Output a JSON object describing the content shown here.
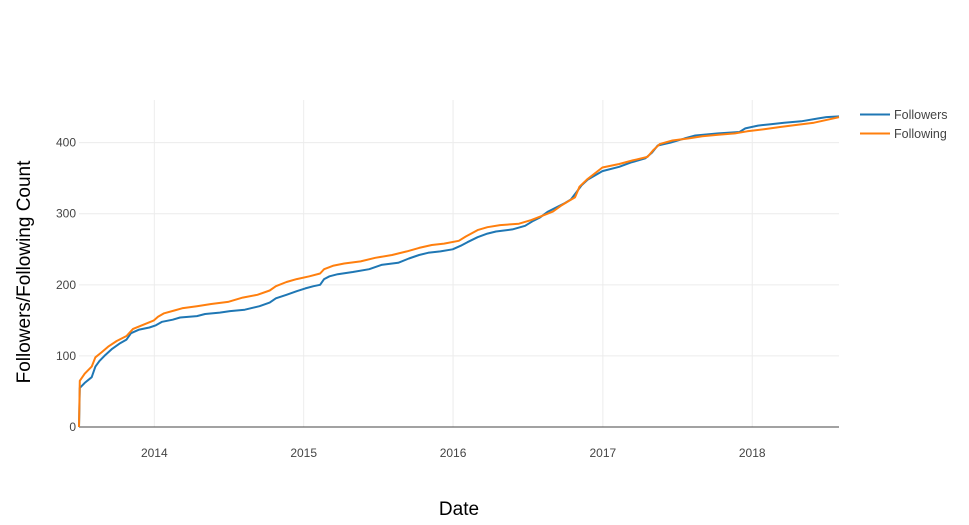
{
  "chart_data": {
    "type": "line",
    "title": "",
    "xlabel": "Date",
    "ylabel": "Followers/Following Count",
    "x_ticks": [
      "2014",
      "2015",
      "2016",
      "2017",
      "2018"
    ],
    "y_ticks": [
      "0",
      "100",
      "200",
      "300",
      "400"
    ],
    "xlim": [
      "2013-07-01",
      "2018-08-01"
    ],
    "ylim": [
      0,
      460
    ],
    "grid": true,
    "legend_position": "top-right",
    "series": [
      {
        "name": "Followers",
        "color": "#1f77b4",
        "points": [
          [
            "2013-07-01",
            0
          ],
          [
            "2013-07-03",
            55
          ],
          [
            "2013-07-15",
            62
          ],
          [
            "2013-08-01",
            70
          ],
          [
            "2013-08-10",
            85
          ],
          [
            "2013-08-20",
            93
          ],
          [
            "2013-09-01",
            100
          ],
          [
            "2013-09-20",
            110
          ],
          [
            "2013-10-10",
            118
          ],
          [
            "2013-10-25",
            123
          ],
          [
            "2013-11-05",
            132
          ],
          [
            "2013-11-25",
            137
          ],
          [
            "2013-12-20",
            140
          ],
          [
            "2014-01-05",
            143
          ],
          [
            "2014-01-20",
            148
          ],
          [
            "2014-02-15",
            151
          ],
          [
            "2014-03-05",
            154
          ],
          [
            "2014-04-15",
            156
          ],
          [
            "2014-05-05",
            159
          ],
          [
            "2014-06-10",
            161
          ],
          [
            "2014-07-05",
            163
          ],
          [
            "2014-08-10",
            165
          ],
          [
            "2014-09-15",
            170
          ],
          [
            "2014-10-10",
            175
          ],
          [
            "2014-10-25",
            181
          ],
          [
            "2014-11-20",
            186
          ],
          [
            "2014-12-15",
            191
          ],
          [
            "2015-01-05",
            195
          ],
          [
            "2015-01-25",
            198
          ],
          [
            "2015-02-10",
            200
          ],
          [
            "2015-02-20",
            208
          ],
          [
            "2015-03-05",
            212
          ],
          [
            "2015-03-25",
            215
          ],
          [
            "2015-05-01",
            218
          ],
          [
            "2015-06-10",
            222
          ],
          [
            "2015-07-10",
            228
          ],
          [
            "2015-08-20",
            231
          ],
          [
            "2015-09-15",
            237
          ],
          [
            "2015-10-10",
            242
          ],
          [
            "2015-11-01",
            245
          ],
          [
            "2015-12-01",
            247
          ],
          [
            "2015-12-31",
            250
          ],
          [
            "2016-01-20",
            255
          ],
          [
            "2016-02-05",
            260
          ],
          [
            "2016-03-01",
            267
          ],
          [
            "2016-03-25",
            272
          ],
          [
            "2016-04-15",
            275
          ],
          [
            "2016-05-25",
            278
          ],
          [
            "2016-06-25",
            283
          ],
          [
            "2016-07-15",
            290
          ],
          [
            "2016-08-01",
            295
          ],
          [
            "2016-08-20",
            303
          ],
          [
            "2016-09-10",
            309
          ],
          [
            "2016-09-30",
            315
          ],
          [
            "2016-10-15",
            320
          ],
          [
            "2016-10-28",
            330
          ],
          [
            "2016-11-10",
            340
          ],
          [
            "2016-11-25",
            348
          ],
          [
            "2016-12-31",
            360
          ],
          [
            "2017-02-10",
            366
          ],
          [
            "2017-03-10",
            372
          ],
          [
            "2017-04-15",
            378
          ],
          [
            "2017-05-01",
            386
          ],
          [
            "2017-05-15",
            396
          ],
          [
            "2017-06-15",
            400
          ],
          [
            "2017-07-20",
            406
          ],
          [
            "2017-08-15",
            410
          ],
          [
            "2017-10-10",
            413
          ],
          [
            "2017-12-01",
            415
          ],
          [
            "2017-12-15",
            420
          ],
          [
            "2018-01-15",
            424
          ],
          [
            "2018-02-15",
            426
          ],
          [
            "2018-03-20",
            428
          ],
          [
            "2018-05-01",
            430
          ],
          [
            "2018-06-10",
            434
          ],
          [
            "2018-07-01",
            436
          ],
          [
            "2018-08-01",
            437
          ]
        ]
      },
      {
        "name": "Following",
        "color": "#ff7f0e",
        "points": [
          [
            "2013-07-01",
            0
          ],
          [
            "2013-07-03",
            65
          ],
          [
            "2013-07-15",
            75
          ],
          [
            "2013-08-01",
            85
          ],
          [
            "2013-08-10",
            98
          ],
          [
            "2013-08-25",
            105
          ],
          [
            "2013-09-10",
            113
          ],
          [
            "2013-10-01",
            121
          ],
          [
            "2013-10-25",
            128
          ],
          [
            "2013-11-10",
            138
          ],
          [
            "2013-12-10",
            145
          ],
          [
            "2013-12-31",
            150
          ],
          [
            "2014-01-10",
            155
          ],
          [
            "2014-01-25",
            160
          ],
          [
            "2014-02-20",
            164
          ],
          [
            "2014-03-10",
            167
          ],
          [
            "2014-04-15",
            170
          ],
          [
            "2014-05-20",
            173
          ],
          [
            "2014-06-30",
            176
          ],
          [
            "2014-08-05",
            182
          ],
          [
            "2014-09-10",
            186
          ],
          [
            "2014-10-10",
            192
          ],
          [
            "2014-10-25",
            198
          ],
          [
            "2014-11-20",
            204
          ],
          [
            "2014-12-15",
            208
          ],
          [
            "2015-01-15",
            212
          ],
          [
            "2015-02-10",
            216
          ],
          [
            "2015-02-20",
            222
          ],
          [
            "2015-03-15",
            227
          ],
          [
            "2015-04-10",
            230
          ],
          [
            "2015-05-20",
            233
          ],
          [
            "2015-06-25",
            238
          ],
          [
            "2015-08-05",
            242
          ],
          [
            "2015-09-10",
            247
          ],
          [
            "2015-10-10",
            252
          ],
          [
            "2015-11-10",
            256
          ],
          [
            "2015-12-10",
            258
          ],
          [
            "2016-01-15",
            262
          ],
          [
            "2016-02-01",
            268
          ],
          [
            "2016-03-01",
            277
          ],
          [
            "2016-03-25",
            281
          ],
          [
            "2016-04-25",
            284
          ],
          [
            "2016-06-10",
            286
          ],
          [
            "2016-07-10",
            291
          ],
          [
            "2016-08-05",
            297
          ],
          [
            "2016-09-01",
            303
          ],
          [
            "2016-09-20",
            311
          ],
          [
            "2016-10-10",
            318
          ],
          [
            "2016-10-25",
            323
          ],
          [
            "2016-11-05",
            338
          ],
          [
            "2016-11-25",
            349
          ],
          [
            "2016-12-31",
            365
          ],
          [
            "2017-02-10",
            370
          ],
          [
            "2017-03-15",
            375
          ],
          [
            "2017-04-20",
            380
          ],
          [
            "2017-05-05",
            390
          ],
          [
            "2017-05-20",
            398
          ],
          [
            "2017-06-20",
            403
          ],
          [
            "2017-07-30",
            406
          ],
          [
            "2017-09-01",
            409
          ],
          [
            "2017-10-10",
            411
          ],
          [
            "2017-11-20",
            413
          ],
          [
            "2017-12-20",
            416
          ],
          [
            "2018-02-01",
            419
          ],
          [
            "2018-03-10",
            422
          ],
          [
            "2018-04-20",
            425
          ],
          [
            "2018-06-01",
            428
          ],
          [
            "2018-07-10",
            433
          ],
          [
            "2018-08-01",
            436
          ]
        ]
      }
    ]
  }
}
